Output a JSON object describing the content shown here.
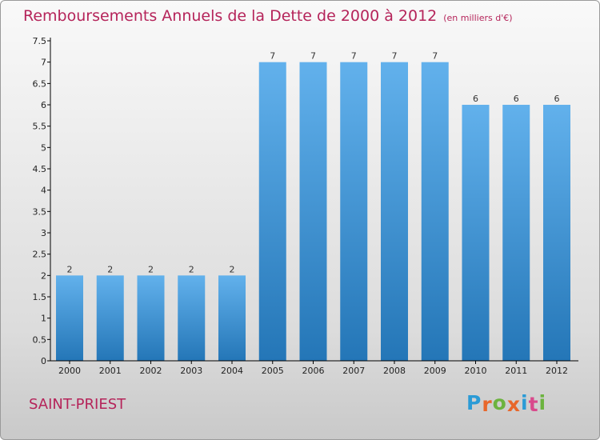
{
  "title": "Remboursements Annuels de la Dette de 2000 à 2012",
  "unit": "(en milliers d'€)",
  "commune": "SAINT-PRIEST",
  "logo": {
    "text": "Proxiti",
    "colors": [
      "#2b9bd6",
      "#e8672b",
      "#6cb33f",
      "#e8672b",
      "#2b9bd6",
      "#d94a8c",
      "#6cb33f"
    ]
  },
  "colors": {
    "title": "#b5245a",
    "bar_light": "#62b1ec",
    "bar_dark": "#2476b7",
    "axis": "#000000"
  },
  "chart_data": {
    "type": "bar",
    "title": "Remboursements Annuels de la Dette de 2000 à 2012",
    "xlabel": "",
    "ylabel": "(en milliers d'€)",
    "categories": [
      "2000",
      "2001",
      "2002",
      "2003",
      "2004",
      "2005",
      "2006",
      "2007",
      "2008",
      "2009",
      "2010",
      "2011",
      "2012"
    ],
    "values": [
      2,
      2,
      2,
      2,
      2,
      7,
      7,
      7,
      7,
      7,
      6,
      6,
      6
    ],
    "labels": [
      "2",
      "2",
      "2",
      "2",
      "2",
      "7",
      "7",
      "7",
      "7",
      "7",
      "6",
      "6",
      "6"
    ],
    "ylim": [
      0,
      7.5
    ],
    "yticks": [
      0,
      0.5,
      1,
      1.5,
      2,
      2.5,
      3,
      3.5,
      4,
      4.5,
      5,
      5.5,
      6,
      6.5,
      7,
      7.5
    ],
    "ytick_labels": [
      "0",
      "0.5",
      "1",
      "1.5",
      "2",
      "2.5",
      "3",
      "3.5",
      "4",
      "4.5",
      "5",
      "5.5",
      "6",
      "6.5",
      "7",
      "7.5"
    ],
    "grid": false,
    "legend": "none"
  }
}
